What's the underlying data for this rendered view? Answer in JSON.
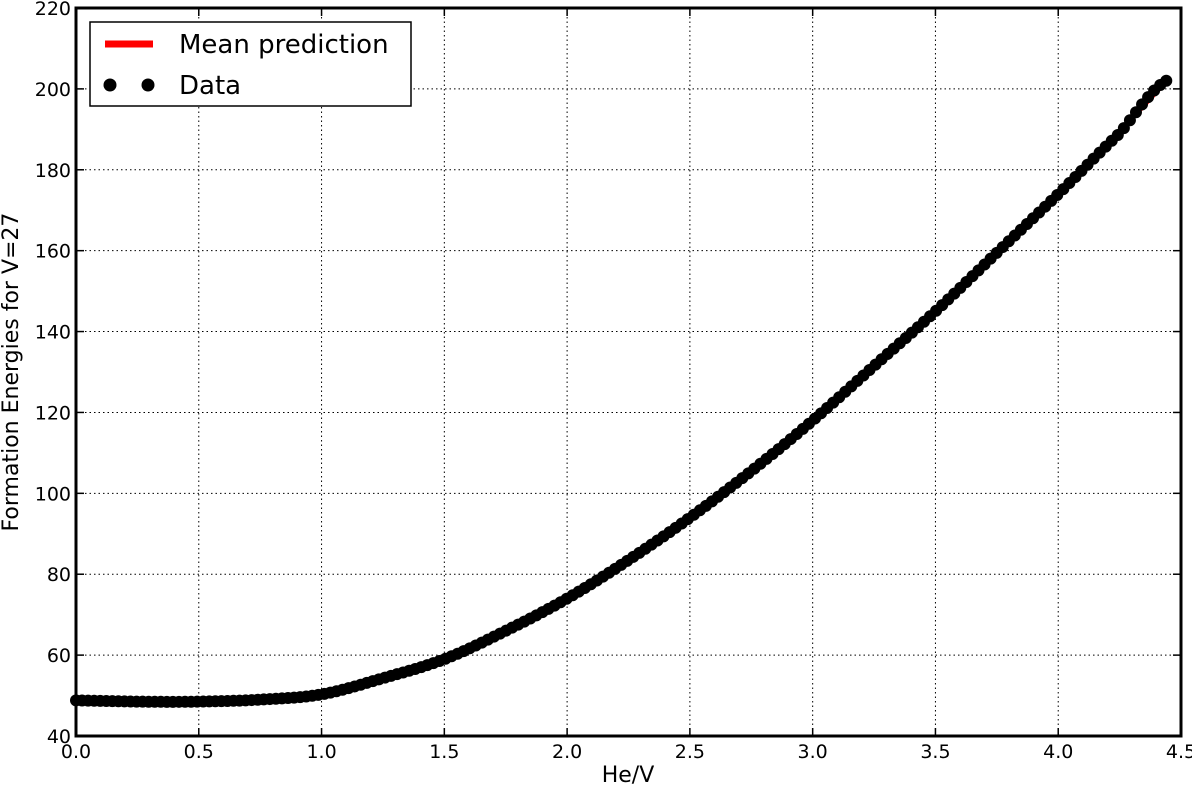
{
  "chart_data": {
    "type": "scatter",
    "xlabel": "He/V",
    "ylabel": "Formation Energies for V=27",
    "xlim": [
      0.0,
      4.5
    ],
    "ylim": [
      40,
      220
    ],
    "xticks": [
      "0.0",
      "0.5",
      "1.0",
      "1.5",
      "2.0",
      "2.5",
      "3.0",
      "3.5",
      "4.0",
      "4.5"
    ],
    "yticks": [
      "40",
      "60",
      "80",
      "100",
      "120",
      "140",
      "160",
      "180",
      "200",
      "220"
    ],
    "grid": true,
    "legend_position": "top-left",
    "series": [
      {
        "name": "Mean prediction",
        "style": "line",
        "color": "#ff0000",
        "x": [
          0.0,
          0.25,
          0.5,
          0.75,
          1.0,
          1.25,
          1.5,
          1.75,
          2.0,
          2.25,
          2.5,
          2.75,
          3.0,
          3.25,
          3.5,
          3.75,
          4.0,
          4.25,
          4.44
        ],
        "y": [
          48.8,
          48.5,
          48.3,
          49.0,
          50.8,
          54.5,
          59.0,
          65.5,
          73.5,
          83.0,
          93.5,
          105.0,
          118.0,
          131.5,
          145.5,
          159.5,
          174.0,
          189.5,
          202.0
        ]
      },
      {
        "name": "Data",
        "style": "points",
        "color": "#000000",
        "x": [
          0.0,
          0.25,
          0.5,
          0.75,
          1.0,
          1.25,
          1.5,
          1.75,
          2.0,
          2.25,
          2.5,
          2.75,
          3.0,
          3.25,
          3.5,
          3.75,
          4.0,
          4.25,
          4.44
        ],
        "y": [
          48.8,
          48.5,
          48.5,
          49.0,
          50.3,
          54.3,
          59.0,
          66.0,
          74.0,
          83.5,
          94.0,
          105.5,
          118.0,
          131.5,
          145.0,
          159.5,
          174.0,
          189.0,
          202.0
        ]
      }
    ]
  }
}
